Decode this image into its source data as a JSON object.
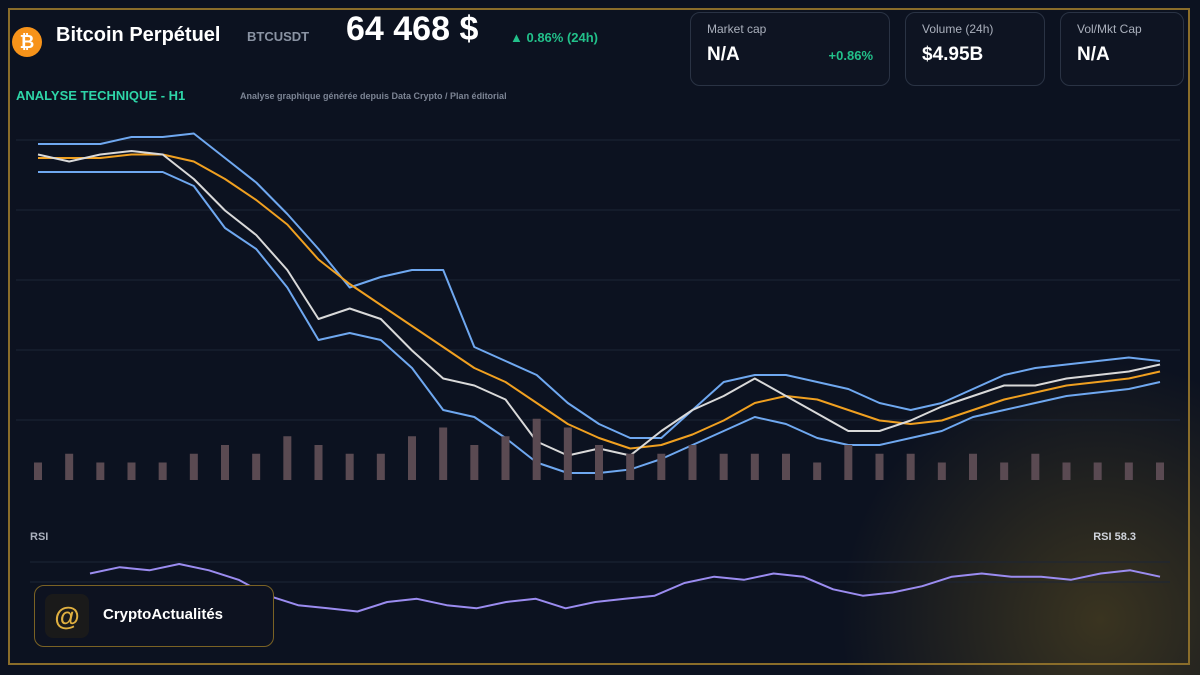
{
  "header": {
    "title": "Bitcoin Perpétuel",
    "symbol": "BTCUSDT",
    "price": "64 468 $",
    "change": "▲ 0.86% (24h)"
  },
  "stats": [
    {
      "label": "Market cap",
      "value": "N/A",
      "extra": "+0.86%"
    },
    {
      "label": "Volume (24h)",
      "value": "$4.95B"
    },
    {
      "label": "Vol/Mkt Cap",
      "value": "N/A"
    }
  ],
  "section": {
    "title": "ANALYSE TECHNIQUE - H1",
    "note": "Analyse graphique générée depuis Data Crypto / Plan éditorial"
  },
  "brand": "CryptoActualités",
  "chart_data": [
    {
      "type": "line",
      "ylim": [
        0,
        100
      ],
      "y2lim": [
        0,
        40
      ],
      "series": [
        {
          "color": "#6fa8f0",
          "values": [
            96,
            96,
            96,
            98,
            98,
            99,
            92,
            85,
            76,
            66,
            55,
            58,
            60,
            60,
            38,
            34,
            30,
            22,
            16,
            12,
            12,
            20,
            28,
            30,
            30,
            28,
            26,
            22,
            20,
            22,
            26,
            30,
            32,
            33,
            34,
            35,
            34
          ]
        },
        {
          "color": "#6fa8f0",
          "values": [
            88,
            88,
            88,
            88,
            88,
            84,
            72,
            66,
            55,
            40,
            42,
            40,
            32,
            20,
            18,
            12,
            5,
            2,
            2,
            3,
            6,
            10,
            14,
            18,
            16,
            12,
            10,
            10,
            12,
            14,
            18,
            20,
            22,
            24,
            25,
            26,
            28
          ]
        },
        {
          "color": "#f0a020",
          "values": [
            92,
            92,
            92,
            93,
            93,
            91,
            86,
            80,
            73,
            63,
            56,
            50,
            44,
            38,
            32,
            28,
            22,
            16,
            12,
            9,
            10,
            13,
            17,
            22,
            24,
            23,
            20,
            17,
            16,
            17,
            20,
            23,
            25,
            27,
            28,
            29,
            31
          ]
        },
        {
          "color": "#d9d9d9",
          "values": [
            93,
            91,
            93,
            94,
            93,
            86,
            77,
            70,
            60,
            46,
            49,
            46,
            37,
            29,
            27,
            23,
            11,
            7,
            9,
            7,
            14,
            20,
            24,
            29,
            24,
            19,
            14,
            14,
            17,
            21,
            24,
            27,
            27,
            29,
            30,
            31,
            33
          ]
        },
        {
          "color": "#5a4a52",
          "axis": "y2",
          "values": [
            2,
            3,
            2,
            2,
            2,
            3,
            4,
            3,
            5,
            4,
            3,
            3,
            5,
            6,
            4,
            5,
            7,
            6,
            4,
            3,
            3,
            4,
            3,
            3,
            3,
            2,
            4,
            3,
            3,
            2,
            3,
            2,
            3,
            2,
            2,
            2,
            2
          ]
        }
      ]
    },
    {
      "type": "line",
      "title": "RSI",
      "annotation": "RSI 58.3",
      "ylim": [
        20,
        80
      ],
      "series": [
        {
          "color": "#9b8cf0",
          "values": [
            62,
            66,
            64,
            68,
            64,
            58,
            48,
            42,
            40,
            38,
            44,
            46,
            42,
            40,
            44,
            46,
            40,
            44,
            46,
            48,
            56,
            60,
            58,
            62,
            60,
            52,
            48,
            50,
            54,
            60,
            62,
            60,
            60,
            58,
            62,
            64,
            60
          ]
        }
      ]
    }
  ]
}
